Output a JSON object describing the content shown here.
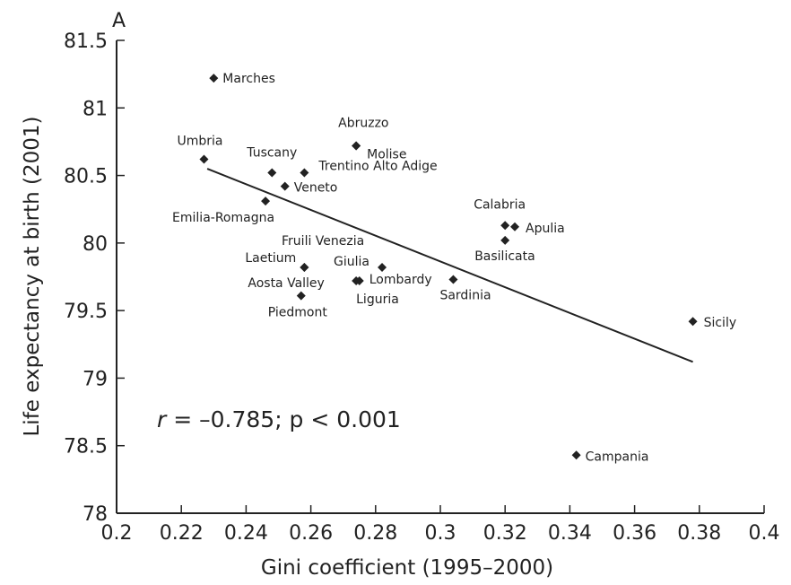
{
  "chart_data": {
    "type": "scatter",
    "panel_label": "A",
    "xlabel": "Gini coefficient (1995–2000)",
    "ylabel": "Life expectancy at birth (2001)",
    "xlim": [
      0.2,
      0.4
    ],
    "ylim": [
      78,
      81.5
    ],
    "x_ticks": [
      "0.2",
      "0.22",
      "0.24",
      "0.26",
      "0.28",
      "0.3",
      "0.32",
      "0.34",
      "0.36",
      "0.38",
      "0.4"
    ],
    "y_ticks": [
      "78",
      "78.5",
      "79",
      "79.5",
      "80",
      "80.5",
      "81",
      "81.5"
    ],
    "annotation": {
      "r_symbol": "r",
      "rest": " = –0.785; p < 0.001"
    },
    "points": [
      {
        "label": "Marches",
        "x": 0.23,
        "y": 81.22
      },
      {
        "label": "Umbria",
        "x": 0.227,
        "y": 80.62
      },
      {
        "label": "Tuscany",
        "x": 0.248,
        "y": 80.52
      },
      {
        "label": "Veneto",
        "x": 0.252,
        "y": 80.42
      },
      {
        "label": "Emilia-Romagna",
        "x": 0.246,
        "y": 80.31
      },
      {
        "label": "Trentino Alto Adige",
        "x": 0.258,
        "y": 80.52
      },
      {
        "label": "Abruzzo",
        "x": 0.274,
        "y": 80.72
      },
      {
        "label": "Molise",
        "x": 0.274,
        "y": 80.72
      },
      {
        "label": "Laetium",
        "x": 0.258,
        "y": 79.82
      },
      {
        "label": "Aosta Valley",
        "x": 0.258,
        "y": 79.82
      },
      {
        "label": "Piedmont",
        "x": 0.257,
        "y": 79.61
      },
      {
        "label": "Fruili Venezia Giulia",
        "x": 0.282,
        "y": 79.82
      },
      {
        "label": "Lombardy",
        "x": 0.275,
        "y": 79.72
      },
      {
        "label": "Liguria",
        "x": 0.274,
        "y": 79.72
      },
      {
        "label": "Sardinia",
        "x": 0.304,
        "y": 79.73
      },
      {
        "label": "Calabria",
        "x": 0.32,
        "y": 80.13
      },
      {
        "label": "Apulia",
        "x": 0.323,
        "y": 80.12
      },
      {
        "label": "Basilicata",
        "x": 0.32,
        "y": 80.02
      },
      {
        "label": "Sicily",
        "x": 0.378,
        "y": 79.42
      },
      {
        "label": "Campania",
        "x": 0.342,
        "y": 78.43
      }
    ],
    "fit_line": {
      "x": [
        0.228,
        0.378
      ],
      "y": [
        80.55,
        79.12
      ]
    },
    "grid": false,
    "legend": "none"
  }
}
